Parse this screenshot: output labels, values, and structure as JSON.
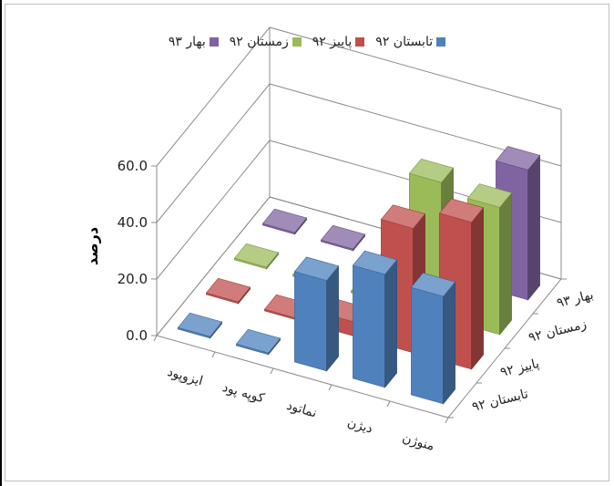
{
  "chart_data": {
    "type": "bar",
    "title": "",
    "ylabel": "درصد",
    "ylim": [
      0,
      60
    ],
    "yticks": [
      "0.0",
      "20.0",
      "40.0",
      "60.0"
    ],
    "categories": [
      "ایزوپود",
      "کوپه پود",
      "نماتود",
      "دیژن",
      "منوژن"
    ],
    "series": [
      {
        "name": "تابستان ۹۲",
        "color": "#4f81bd",
        "values": [
          0,
          0,
          32,
          40,
          38
        ]
      },
      {
        "name": "پاییز ۹۲",
        "color": "#c0504d",
        "values": [
          0,
          0,
          5,
          44,
          52
        ]
      },
      {
        "name": "زمستان ۹۲",
        "color": "#9bbb59",
        "values": [
          0,
          0,
          0,
          48,
          45
        ]
      },
      {
        "name": "بهار ۹۳",
        "color": "#8064a2",
        "values": [
          0,
          0,
          0,
          17,
          46
        ]
      }
    ]
  }
}
